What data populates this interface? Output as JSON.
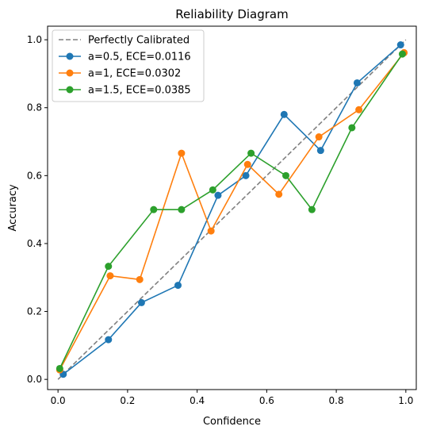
{
  "chart_data": {
    "type": "line",
    "title": "Reliability Diagram",
    "xlabel": "Confidence",
    "ylabel": "Accuracy",
    "xlim": [
      -0.03,
      1.03
    ],
    "ylim": [
      -0.03,
      1.04
    ],
    "xticks": [
      "0.0",
      "0.2",
      "0.4",
      "0.6",
      "0.8",
      "1.0"
    ],
    "yticks": [
      "0.0",
      "0.2",
      "0.4",
      "0.6",
      "0.8",
      "1.0"
    ],
    "grid": false,
    "legend_position": "upper-left",
    "reference_line": {
      "name": "Perfectly Calibrated",
      "x": [
        0,
        1
      ],
      "y": [
        0,
        1
      ],
      "color": "#808080",
      "style": "dashed"
    },
    "series": [
      {
        "name": "a=0.5, ECE=0.0116",
        "color": "#1f77b4",
        "x": [
          0.015,
          0.145,
          0.24,
          0.345,
          0.46,
          0.54,
          0.65,
          0.755,
          0.86,
          0.985
        ],
        "y": [
          0.015,
          0.117,
          0.226,
          0.277,
          0.542,
          0.6,
          0.78,
          0.674,
          0.873,
          0.985
        ]
      },
      {
        "name": "a=1, ECE=0.0302",
        "color": "#ff7f0e",
        "x": [
          0.005,
          0.15,
          0.235,
          0.355,
          0.44,
          0.545,
          0.635,
          0.75,
          0.865,
          0.995
        ],
        "y": [
          0.028,
          0.305,
          0.294,
          0.666,
          0.437,
          0.633,
          0.545,
          0.714,
          0.794,
          0.962
        ]
      },
      {
        "name": "a=1.5, ECE=0.0385",
        "color": "#2ca02c",
        "x": [
          0.005,
          0.145,
          0.275,
          0.355,
          0.445,
          0.555,
          0.655,
          0.73,
          0.845,
          0.99
        ],
        "y": [
          0.032,
          0.333,
          0.5,
          0.5,
          0.558,
          0.666,
          0.6,
          0.5,
          0.741,
          0.958
        ]
      }
    ]
  }
}
